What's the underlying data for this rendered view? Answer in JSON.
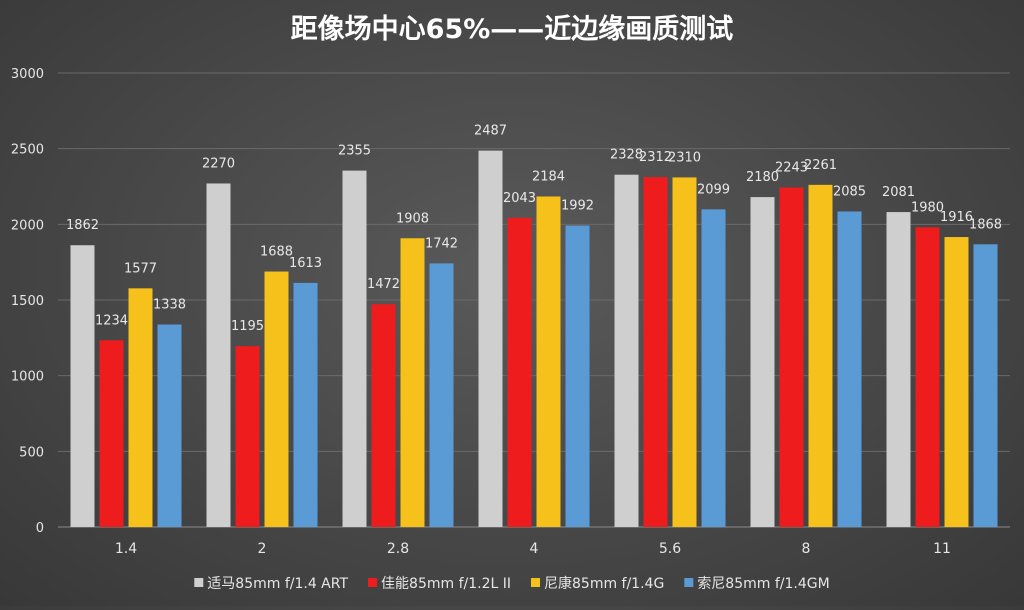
{
  "chart_data": {
    "type": "bar",
    "title": "距像场中心65%——近边缘画质测试",
    "xlabel": "",
    "ylabel": "",
    "ylim": [
      0,
      3000
    ],
    "yticks": [
      0,
      500,
      1000,
      1500,
      2000,
      2500,
      3000
    ],
    "grid": true,
    "legend_position": "bottom",
    "categories": [
      "1.4",
      "2",
      "2.8",
      "4",
      "5.6",
      "8",
      "11"
    ],
    "series": [
      {
        "name": "适马85mm f/1.4 ART",
        "color": "#cfcfcf",
        "values": [
          1862,
          2270,
          2355,
          2487,
          2328,
          2180,
          2081
        ]
      },
      {
        "name": "佳能85mm f/1.2L II",
        "color": "#ee1c1c",
        "values": [
          1234,
          1195,
          1472,
          2043,
          2312,
          2243,
          1980
        ]
      },
      {
        "name": "尼康85mm f/1.4G",
        "color": "#f5c11a",
        "values": [
          1577,
          1688,
          1908,
          2184,
          2310,
          2261,
          1916
        ]
      },
      {
        "name": "索尼85mm f/1.4GM",
        "color": "#5b9bd5",
        "values": [
          1338,
          1613,
          1742,
          1992,
          2099,
          2085,
          1868
        ]
      }
    ]
  }
}
